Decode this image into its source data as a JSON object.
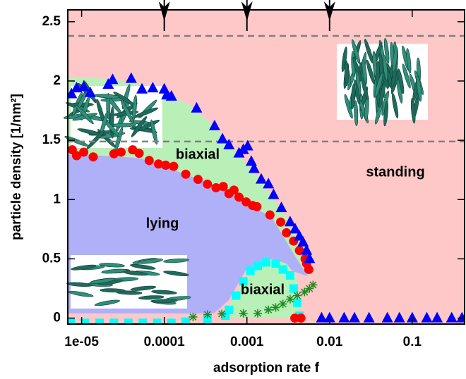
{
  "chart_data": {
    "type": "scatter",
    "x_label": "adsorption rate f",
    "y_label": "particle density [1/nm²]",
    "xscale": "log",
    "xlim": [
      6.8e-06,
      0.43
    ],
    "ylim": [
      -0.05,
      2.6
    ],
    "xticks": [
      {
        "value": 1e-05,
        "label": "1e-05"
      },
      0.0001,
      0.001,
      0.01,
      0.1
    ],
    "yticks": [
      0,
      0.5,
      1,
      1.5,
      2,
      2.5
    ],
    "hlines": [
      2.38,
      1.49
    ],
    "arrows_x": [
      0.0001,
      0.001,
      0.01
    ],
    "regions": [
      {
        "label": "standing",
        "color": "#ffc8c8",
        "x": [
          6.8e-06,
          0.43,
          0.43,
          6.8e-06
        ],
        "y": [
          2.6,
          2.6,
          -0.05,
          -0.05
        ]
      },
      {
        "label": "biaxial",
        "color": "#b8f0b8",
        "x": [
          6.8e-06,
          2e-05,
          5e-05,
          0.0001,
          0.0002,
          0.0004,
          0.0008,
          0.0015,
          0.003,
          0.005,
          0.0063,
          0.0055,
          0.004,
          0.002,
          0.001,
          0.0005,
          0.0002,
          0.0001,
          5e-05,
          1e-05,
          6.8e-06
        ],
        "y": [
          2.03,
          2.02,
          1.98,
          1.9,
          1.8,
          1.62,
          1.38,
          1.15,
          0.85,
          0.58,
          0.4,
          0.35,
          0.5,
          0.85,
          0.97,
          1.1,
          1.2,
          1.28,
          1.35,
          1.38,
          1.38
        ]
      },
      {
        "label": "lying",
        "color": "#b0b0f8",
        "x": [
          6.8e-06,
          1e-05,
          5e-05,
          0.0001,
          0.0002,
          0.0005,
          0.001,
          0.002,
          0.004,
          0.0055,
          0.0035,
          0.002,
          0.001,
          0.0006,
          0.0004,
          6.8e-06
        ],
        "y": [
          1.38,
          1.38,
          1.35,
          1.28,
          1.2,
          1.1,
          0.97,
          0.85,
          0.5,
          0.35,
          0.4,
          0.48,
          0.42,
          0.15,
          0.04,
          0.04
        ]
      },
      {
        "label": "biaxial",
        "color": "#b8f0b8",
        "x": [
          0.0005,
          0.0008,
          0.0012,
          0.002,
          0.003,
          0.004,
          0.0043,
          0.004
        ],
        "y": [
          0,
          0.25,
          0.45,
          0.5,
          0.46,
          0.35,
          0.1,
          0
        ]
      }
    ],
    "series": [
      {
        "marker": "square",
        "color": "#00ffff",
        "x": [
          7.4e-06,
          1.1e-05,
          1.65e-05,
          2.46e-05,
          3.67e-05,
          5.5e-05,
          8.2e-05,
          0.000122,
          0.000182,
          0.000333,
          0.00055,
          0.000606,
          0.00074,
          0.000905,
          0.0011,
          0.00135,
          0.00171,
          0.00223,
          0.00272,
          0.00333,
          0.00367,
          0.00406,
          0.00432
        ],
        "values": [
          -0.04,
          -0.04,
          -0.04,
          -0.04,
          -0.04,
          -0.04,
          -0.04,
          -0.04,
          -0.03,
          -0.01,
          0.02,
          0.07,
          0.19,
          0.31,
          0.4,
          0.44,
          0.47,
          0.46,
          0.41,
          0.36,
          0.25,
          0.13,
          0.02
        ]
      },
      {
        "marker": "star",
        "color": "#228b22",
        "x": [
          0.000223,
          0.000333,
          0.000497,
          0.000905,
          0.00135,
          0.00182,
          0.00223,
          0.00272,
          0.00333,
          0.00406,
          0.00497,
          0.00571,
          0.00631
        ],
        "values": [
          0.01,
          0.03,
          0.036,
          0.04,
          0.04,
          0.07,
          0.09,
          0.12,
          0.16,
          0.19,
          0.22,
          0.25,
          0.28
        ]
      },
      {
        "marker": "circle",
        "color": "#ff0000",
        "x": [
          7.7e-06,
          8.7e-06,
          1.06e-05,
          1.38e-05,
          2.46e-05,
          3e-05,
          4.14e-05,
          4.96e-05,
          6.57e-05,
          8.51e-05,
          0.000104,
          0.00013,
          0.000182,
          0.000256,
          0.000333,
          0.000423,
          0.000517,
          0.000606,
          0.000697,
          0.000802,
          0.00098,
          0.00117,
          0.00132,
          0.0019,
          0.00256,
          0.00301,
          0.00367,
          0.00432,
          0.00506,
          0.00527,
          0.0056,
          0.0038,
          0.0045
        ],
        "values": [
          1.42,
          1.37,
          1.4,
          1.36,
          1.386,
          1.4,
          1.42,
          1.39,
          1.33,
          1.3,
          1.29,
          1.28,
          1.214,
          1.17,
          1.13,
          1.1,
          1.11,
          1.05,
          1.08,
          1.02,
          0.98,
          0.95,
          0.94,
          0.87,
          0.81,
          0.72,
          0.65,
          0.57,
          0.5,
          0.46,
          0.41,
          0,
          0
        ]
      },
      {
        "marker": "triangle",
        "color": "#0000ff",
        "x": [
          7.55e-06,
          8.7e-06,
          1.06e-05,
          1.27e-05,
          2.1e-05,
          2.37e-05,
          3.98e-05,
          5.37e-05,
          7.26e-05,
          0.0001,
          0.000107,
          0.000122,
          0.000246,
          0.000406,
          0.000506,
          0.000606,
          0.000802,
          0.000905,
          0.00102,
          0.00113,
          0.00122,
          0.00149,
          0.00182,
          0.0021,
          0.00261,
          0.00333,
          0.00383,
          0.00432,
          0.00477,
          0.00527,
          0.00571,
          0.008,
          0.01,
          0.015,
          0.02,
          0.03,
          0.05,
          0.07,
          0.1,
          0.15,
          0.2,
          0.3,
          0.4
        ],
        "values": [
          1.89,
          1.94,
          1.95,
          1.9,
          1.97,
          2.01,
          2.02,
          1.93,
          1.94,
          1.93,
          1.88,
          1.87,
          1.77,
          1.62,
          1.51,
          1.46,
          1.39,
          1.42,
          1.45,
          1.32,
          1.26,
          1.17,
          1.13,
          1.04,
          0.93,
          0.81,
          0.75,
          0.69,
          0.64,
          0.57,
          0.5,
          0,
          0,
          0,
          0,
          0,
          0,
          0,
          0,
          0,
          0,
          0,
          0
        ]
      }
    ]
  }
}
